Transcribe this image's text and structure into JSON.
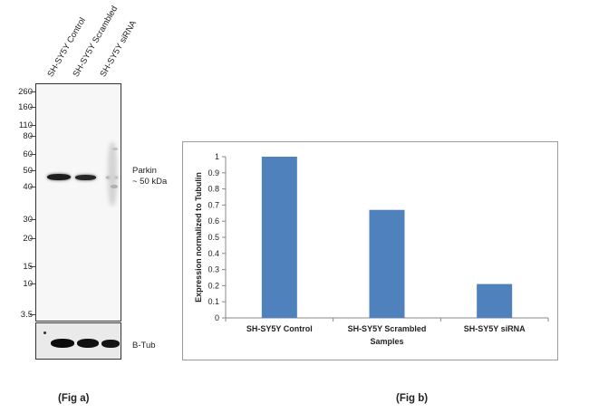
{
  "fig_a": {
    "lane_labels": [
      "SH-SY5Y Control",
      "SH-SY5Y Scrambled",
      "SH-SY5Y siRNA"
    ],
    "mw_markers": [
      "260",
      "160",
      "110",
      "80",
      "60",
      "50",
      "40",
      "30",
      "20",
      "15",
      "10",
      "3.5"
    ],
    "target_label_line1": "Parkin",
    "target_label_line2": "~ 50 kDa",
    "loading_control_label": "B-Tub",
    "caption": "(Fig a)"
  },
  "fig_b": {
    "caption": "(Fig b)"
  },
  "chart_data": {
    "type": "bar",
    "categories": [
      "SH-SY5Y Control",
      "SH-SY5Y Scrambled",
      "SH-SY5Y siRNA"
    ],
    "values": [
      1.0,
      0.67,
      0.21
    ],
    "xlabel": "Samples",
    "ylabel": "Expression  normalized to Tubulin",
    "ylim": [
      0,
      1
    ],
    "yticks": [
      "0",
      "0.1",
      "0.2",
      "0.3",
      "0.4",
      "0.5",
      "0.6",
      "0.7",
      "0.8",
      "0.9",
      "1"
    ],
    "grid": false,
    "bar_color": "#4f81bd"
  }
}
